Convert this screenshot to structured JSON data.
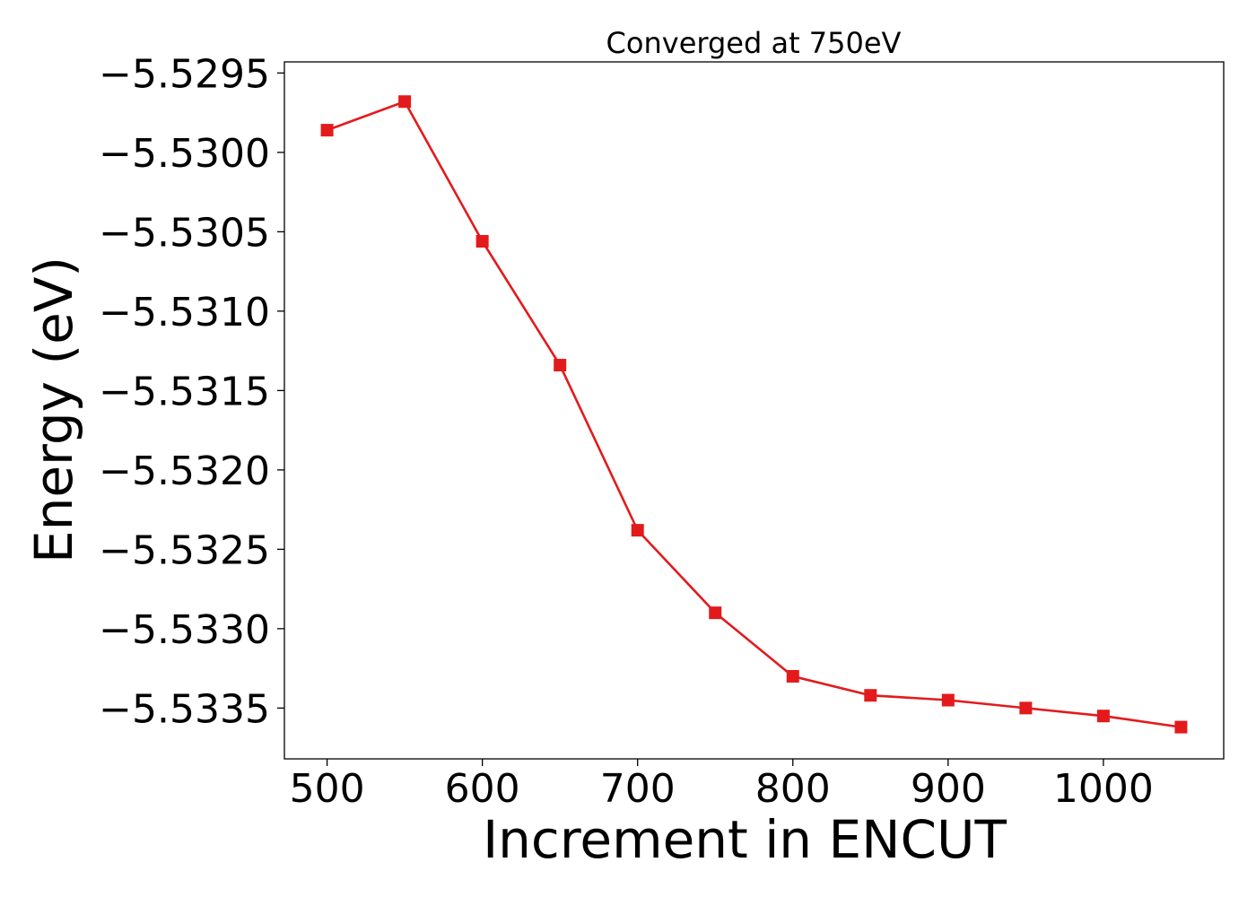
{
  "chart_data": {
    "type": "line",
    "title": "Converged at 750eV",
    "xlabel": "Increment in ENCUT",
    "ylabel": "Energy (eV)",
    "xlim": [
      472.5,
      1077.5
    ],
    "ylim": [
      -5.53382,
      -5.52943
    ],
    "xticks": [
      500,
      600,
      700,
      800,
      900,
      1000
    ],
    "xtick_labels": [
      "500",
      "600",
      "700",
      "800",
      "900",
      "1000"
    ],
    "yticks": [
      -5.5295,
      -5.53,
      -5.5305,
      -5.531,
      -5.5315,
      -5.532,
      -5.5325,
      -5.533,
      -5.5335
    ],
    "ytick_labels": [
      "−5.5295",
      "−5.5300",
      "−5.5305",
      "−5.5310",
      "−5.5315",
      "−5.5320",
      "−5.5325",
      "−5.5330",
      "−5.5335"
    ],
    "grid": false,
    "marker": "square",
    "color": "#e31a1c",
    "series": [
      {
        "x": [
          500,
          550,
          600,
          650,
          700,
          750,
          800,
          850,
          900,
          950,
          1000,
          1050
        ],
        "y": [
          -5.52986,
          -5.52968,
          -5.53056,
          -5.53134,
          -5.53238,
          -5.5329,
          -5.5333,
          -5.53342,
          -5.53345,
          -5.5335,
          -5.53355,
          -5.53362
        ]
      }
    ]
  }
}
